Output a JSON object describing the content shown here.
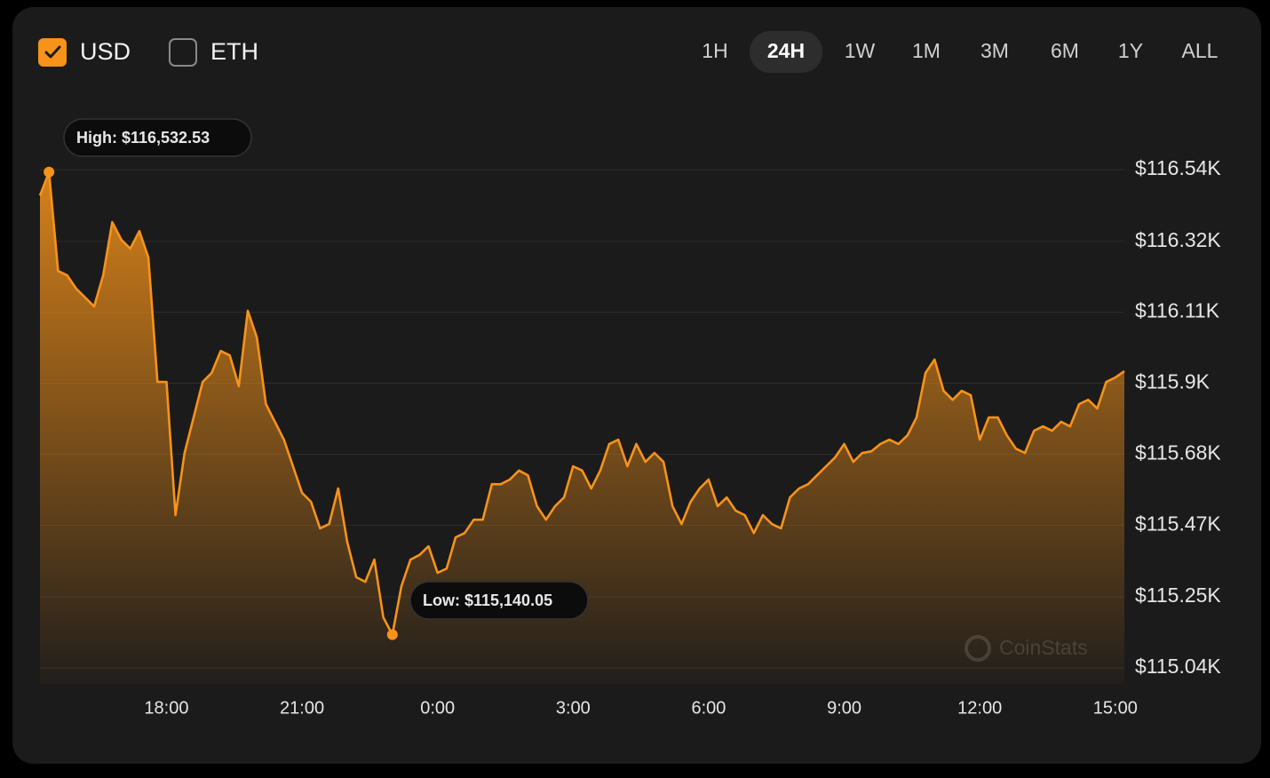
{
  "currencies": [
    {
      "label": "USD",
      "checked": true
    },
    {
      "label": "ETH",
      "checked": false
    }
  ],
  "ranges": [
    "1H",
    "24H",
    "1W",
    "1M",
    "3M",
    "6M",
    "1Y",
    "ALL"
  ],
  "selected_range": "24H",
  "watermark": "CoinStats",
  "chart_data": {
    "type": "area",
    "x": [
      15.2,
      15.4,
      15.6,
      15.8,
      16.0,
      16.2,
      16.4,
      16.6,
      16.8,
      17.0,
      17.2,
      17.4,
      17.6,
      17.8,
      18.0,
      18.2,
      18.4,
      18.6,
      18.8,
      19.0,
      19.2,
      19.4,
      19.6,
      19.8,
      20.0,
      20.2,
      20.4,
      20.6,
      20.8,
      21.0,
      21.2,
      21.4,
      21.6,
      21.8,
      22.0,
      22.2,
      22.4,
      22.6,
      22.8,
      23.0,
      23.2,
      23.4,
      23.6,
      23.8,
      24.0,
      24.2,
      24.4,
      24.6,
      24.8,
      25.0,
      25.2,
      25.4,
      25.6,
      25.8,
      26.0,
      26.2,
      26.4,
      26.6,
      26.8,
      27.0,
      27.2,
      27.4,
      27.6,
      27.8,
      28.0,
      28.2,
      28.4,
      28.6,
      28.8,
      29.0,
      29.2,
      29.4,
      29.6,
      29.8,
      30.0,
      30.2,
      30.4,
      30.6,
      30.8,
      31.0,
      31.2,
      31.4,
      31.6,
      31.8,
      32.0,
      32.2,
      32.4,
      32.6,
      32.8,
      33.0,
      33.2,
      33.4,
      33.6,
      33.8,
      34.0,
      34.2,
      34.4,
      34.6,
      34.8,
      35.0,
      35.2,
      35.4,
      35.6,
      35.8,
      36.0,
      36.2,
      36.4,
      36.6,
      36.8,
      37.0,
      37.2,
      37.4,
      37.6,
      37.8,
      38.0,
      38.2,
      38.4,
      38.6,
      38.8,
      39.0,
      39.2
    ],
    "series": [
      {
        "name": "USD",
        "color": "#f7931a",
        "values": [
          116462,
          116532.53,
          116235,
          116222,
          116182,
          116155,
          116128,
          116222,
          116382,
          116329,
          116302,
          116355,
          116275,
          115901,
          115901,
          115500,
          115687,
          115794,
          115901,
          115928,
          115994,
          115981,
          115888,
          116115,
          116035,
          115834,
          115781,
          115727,
          115647,
          115567,
          115540,
          115460,
          115473,
          115580,
          115420,
          115313,
          115299,
          115366,
          115192,
          115140.05,
          115286,
          115366,
          115380,
          115406,
          115326,
          115339,
          115433,
          115446,
          115486,
          115486,
          115593,
          115593,
          115607,
          115634,
          115620,
          115527,
          115486,
          115527,
          115553,
          115647,
          115634,
          115580,
          115634,
          115714,
          115727,
          115647,
          115714,
          115660,
          115687,
          115660,
          115527,
          115473,
          115540,
          115580,
          115607,
          115527,
          115553,
          115513,
          115500,
          115446,
          115500,
          115473,
          115460,
          115553,
          115580,
          115593,
          115620,
          115647,
          115674,
          115714,
          115660,
          115687,
          115692,
          115714,
          115727,
          115714,
          115740,
          115794,
          115928,
          115968,
          115874,
          115847,
          115874,
          115861,
          115727,
          115794,
          115794,
          115740,
          115700,
          115687,
          115754,
          115767,
          115754,
          115781,
          115767,
          115834,
          115847,
          115821,
          115901,
          115914,
          115933
        ]
      }
    ],
    "xlim": [
      15.2,
      39.2
    ],
    "xticks": [
      {
        "value": 18,
        "label": "18:00"
      },
      {
        "value": 21,
        "label": "21:00"
      },
      {
        "value": 24,
        "label": "0:00"
      },
      {
        "value": 27,
        "label": "3:00"
      },
      {
        "value": 30,
        "label": "6:00"
      },
      {
        "value": 33,
        "label": "9:00"
      },
      {
        "value": 36,
        "label": "12:00"
      },
      {
        "value": 39,
        "label": "15:00"
      }
    ],
    "ylim": [
      115040,
      116540
    ],
    "yticks": [
      {
        "value": 116540,
        "label": "$116.54K"
      },
      {
        "value": 116324,
        "label": "$116.32K"
      },
      {
        "value": 116111,
        "label": "$116.11K"
      },
      {
        "value": 115897,
        "label": "$115.9K"
      },
      {
        "value": 115683,
        "label": "$115.68K"
      },
      {
        "value": 115469,
        "label": "$115.47K"
      },
      {
        "value": 115254,
        "label": "$115.25K"
      },
      {
        "value": 115040,
        "label": "$115.04K"
      }
    ],
    "grid": true,
    "annotations": [
      {
        "label": "High: $116,532.53",
        "x": 15.4,
        "y": 116532.53
      },
      {
        "label": "Low: $115,140.05",
        "x": 23.0,
        "y": 115140.05
      }
    ]
  }
}
